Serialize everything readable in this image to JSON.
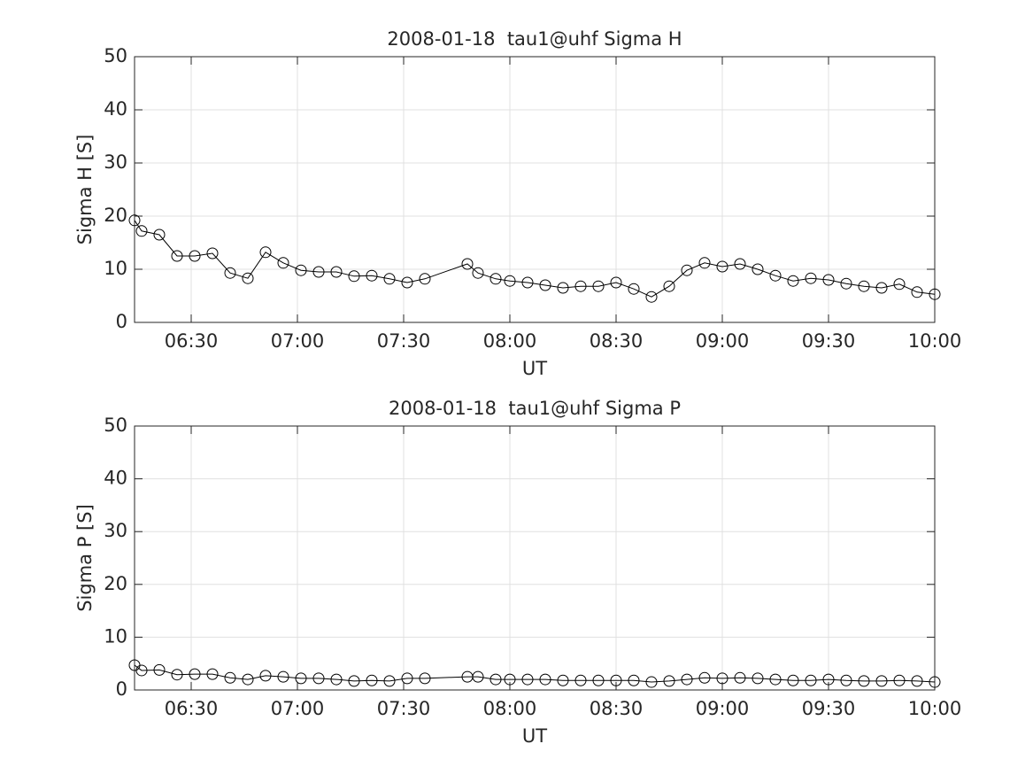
{
  "chart_data": [
    {
      "type": "line",
      "title": "2008-01-18  tau1@uhf Sigma H",
      "xlabel": "UT",
      "ylabel": "Sigma H [S]",
      "x": [
        "06:14",
        "06:16",
        "06:21",
        "06:26",
        "06:31",
        "06:36",
        "06:41",
        "06:46",
        "06:51",
        "06:56",
        "07:01",
        "07:06",
        "07:11",
        "07:16",
        "07:21",
        "07:26",
        "07:31",
        "07:36",
        "07:48",
        "07:51",
        "07:56",
        "08:00",
        "08:05",
        "08:10",
        "08:15",
        "08:20",
        "08:25",
        "08:30",
        "08:35",
        "08:40",
        "08:45",
        "08:50",
        "08:55",
        "09:00",
        "09:05",
        "09:10",
        "09:15",
        "09:20",
        "09:25",
        "09:30",
        "09:35",
        "09:40",
        "09:45",
        "09:50",
        "09:55",
        "10:00"
      ],
      "series": [
        {
          "color": "#000000",
          "marker": "circle",
          "values": [
            19.2,
            17.2,
            16.5,
            12.5,
            12.5,
            13,
            9.3,
            8.3,
            13.2,
            11.2,
            9.8,
            9.5,
            9.5,
            8.7,
            8.8,
            8.2,
            7.5,
            8.2,
            11,
            9.3,
            8.2,
            7.8,
            7.5,
            7,
            6.5,
            6.8,
            6.8,
            7.5,
            6.3,
            4.8,
            6.8,
            9.8,
            11.2,
            10.5,
            11,
            10,
            8.8,
            7.8,
            8.3,
            8,
            7.3,
            6.8,
            6.5,
            7.2,
            5.7,
            5.3
          ]
        }
      ],
      "xlim": [
        "06:14",
        "10:00"
      ],
      "xticks": [
        "06:30",
        "07:00",
        "07:30",
        "08:00",
        "08:30",
        "09:00",
        "09:30",
        "10:00"
      ],
      "ylim": [
        0,
        50
      ],
      "yticks": [
        0,
        10,
        20,
        30,
        40,
        50
      ],
      "grid": true
    },
    {
      "type": "line",
      "title": "2008-01-18  tau1@uhf Sigma P",
      "xlabel": "UT",
      "ylabel": "Sigma P [S]",
      "x": [
        "06:14",
        "06:16",
        "06:21",
        "06:26",
        "06:31",
        "06:36",
        "06:41",
        "06:46",
        "06:51",
        "06:56",
        "07:01",
        "07:06",
        "07:11",
        "07:16",
        "07:21",
        "07:26",
        "07:31",
        "07:36",
        "07:48",
        "07:51",
        "07:56",
        "08:00",
        "08:05",
        "08:10",
        "08:15",
        "08:20",
        "08:25",
        "08:30",
        "08:35",
        "08:40",
        "08:45",
        "08:50",
        "08:55",
        "09:00",
        "09:05",
        "09:10",
        "09:15",
        "09:20",
        "09:25",
        "09:30",
        "09:35",
        "09:40",
        "09:45",
        "09:50",
        "09:55",
        "10:00"
      ],
      "series": [
        {
          "color": "#000000",
          "marker": "circle",
          "values": [
            4.7,
            3.7,
            3.8,
            2.9,
            3,
            3,
            2.3,
            2,
            2.7,
            2.5,
            2.2,
            2.2,
            2,
            1.7,
            1.8,
            1.7,
            2.2,
            2.2,
            2.5,
            2.5,
            2,
            2,
            2,
            2,
            1.8,
            1.8,
            1.8,
            1.8,
            1.8,
            1.5,
            1.7,
            2,
            2.3,
            2.2,
            2.3,
            2.2,
            2,
            1.8,
            1.8,
            2,
            1.8,
            1.7,
            1.7,
            1.8,
            1.7,
            1.5
          ]
        }
      ],
      "xlim": [
        "06:14",
        "10:00"
      ],
      "xticks": [
        "06:30",
        "07:00",
        "07:30",
        "08:00",
        "08:30",
        "09:00",
        "09:30",
        "10:00"
      ],
      "ylim": [
        0,
        50
      ],
      "yticks": [
        0,
        10,
        20,
        30,
        40,
        50
      ],
      "grid": true
    }
  ]
}
